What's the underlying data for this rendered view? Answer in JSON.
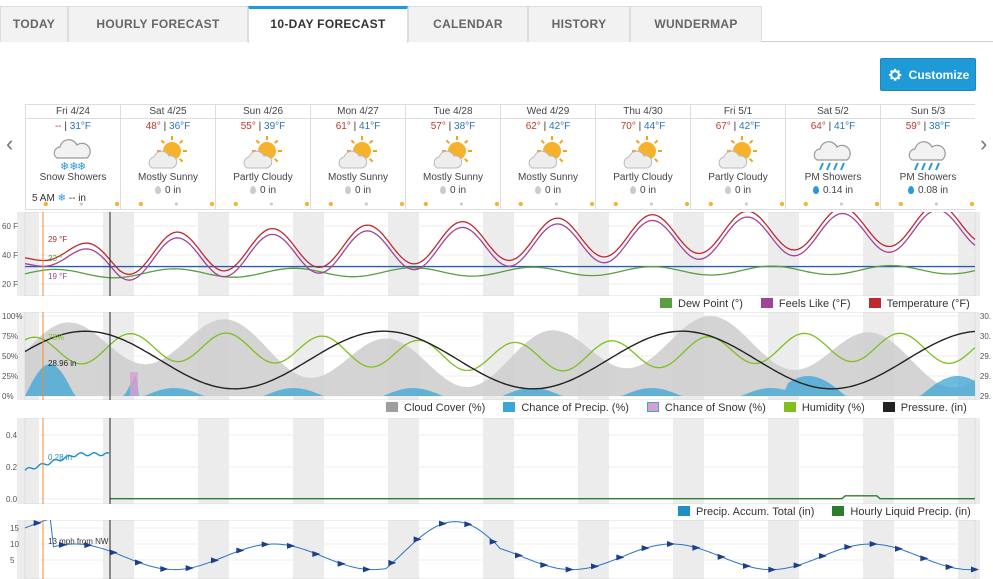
{
  "tabs": [
    {
      "label": "TODAY"
    },
    {
      "label": "HOURLY FORECAST"
    },
    {
      "label": "10-DAY FORECAST"
    },
    {
      "label": "CALENDAR"
    },
    {
      "label": "HISTORY"
    },
    {
      "label": "WUNDERMAP"
    }
  ],
  "active_tab": 2,
  "customize_label": "Customize",
  "days": [
    {
      "date": "Fri 4/24",
      "hi": "--",
      "lo": "31°F",
      "cond": "Snow Showers",
      "precip": "-- in",
      "icon": "snow-cloud"
    },
    {
      "date": "Sat 4/25",
      "hi": "48°",
      "lo": "36°F",
      "cond": "Mostly Sunny",
      "precip": "0 in",
      "icon": "sun-cloud"
    },
    {
      "date": "Sun 4/26",
      "hi": "55°",
      "lo": "39°F",
      "cond": "Partly Cloudy",
      "precip": "0 in",
      "icon": "sun-cloud"
    },
    {
      "date": "Mon 4/27",
      "hi": "61°",
      "lo": "41°F",
      "cond": "Mostly Sunny",
      "precip": "0 in",
      "icon": "sun-cloud"
    },
    {
      "date": "Tue 4/28",
      "hi": "57°",
      "lo": "38°F",
      "cond": "Mostly Sunny",
      "precip": "0 in",
      "icon": "sun-cloud"
    },
    {
      "date": "Wed 4/29",
      "hi": "62°",
      "lo": "42°F",
      "cond": "Mostly Sunny",
      "precip": "0 in",
      "icon": "sun-cloud"
    },
    {
      "date": "Thu 4/30",
      "hi": "70°",
      "lo": "44°F",
      "cond": "Partly Cloudy",
      "precip": "0 in",
      "icon": "sun-cloud"
    },
    {
      "date": "Fri 5/1",
      "hi": "67°",
      "lo": "42°F",
      "cond": "Partly Cloudy",
      "precip": "0 in",
      "icon": "sun-cloud"
    },
    {
      "date": "Sat 5/2",
      "hi": "64°",
      "lo": "41°F",
      "cond": "PM Showers",
      "precip": "0.14 in",
      "icon": "rain-cloud"
    },
    {
      "date": "Sun 5/3",
      "hi": "59°",
      "lo": "38°F",
      "cond": "PM Showers",
      "precip": "0.08 in",
      "icon": "rain-cloud"
    }
  ],
  "first_day_time": "5 AM",
  "first_day_precip": "-- in",
  "separator": " | ",
  "temp_chart": {
    "yticks": [
      "60 F",
      "40 F",
      "20 F"
    ],
    "readouts": {
      "temp": "29 °F",
      "dew": "23 °",
      "feels": "19 °F"
    },
    "legend": [
      "Dew Point (°)",
      "Feels Like (°F)",
      "Temperature (°F)"
    ],
    "colors": {
      "dew": "#5a9e3f",
      "feels": "#a0449a",
      "temp": "#c0282f",
      "freeze": "#2a5dad"
    }
  },
  "cloud_chart": {
    "yticks": [
      "100%",
      "75%",
      "50%",
      "25%",
      "0%"
    ],
    "right_ticks": [
      "30.",
      "30.",
      "29.",
      "29.",
      "29."
    ],
    "readouts": {
      "humidity": "78%",
      "pressure": "28.96 in"
    },
    "legend": [
      "Cloud Cover (%)",
      "Chance of Precip. (%)",
      "Chance of Snow (%)",
      "Humidity (%)",
      "Pressure. (in)"
    ],
    "colors": {
      "cloud": "#9e9e9e",
      "precip": "#3aa6d6",
      "snow": "#d8a0cf",
      "humidity": "#7fbf1f",
      "pressure": "#222222"
    }
  },
  "precip_chart": {
    "yticks": [
      "0.4",
      "0.2",
      "0.0"
    ],
    "readouts": {
      "accum": "0.28 in"
    },
    "legend": [
      "Precip. Accum. Total (in)",
      "Hourly Liquid Precip. (in)"
    ],
    "colors": {
      "accum": "#1e8fc4",
      "liquid": "#2e7d2e"
    }
  },
  "wind_chart": {
    "yticks": [
      "15",
      "10",
      "5"
    ],
    "readouts": {
      "wind": "13 mph from NW"
    },
    "colors": {
      "wind": "#2a73c8"
    }
  }
}
